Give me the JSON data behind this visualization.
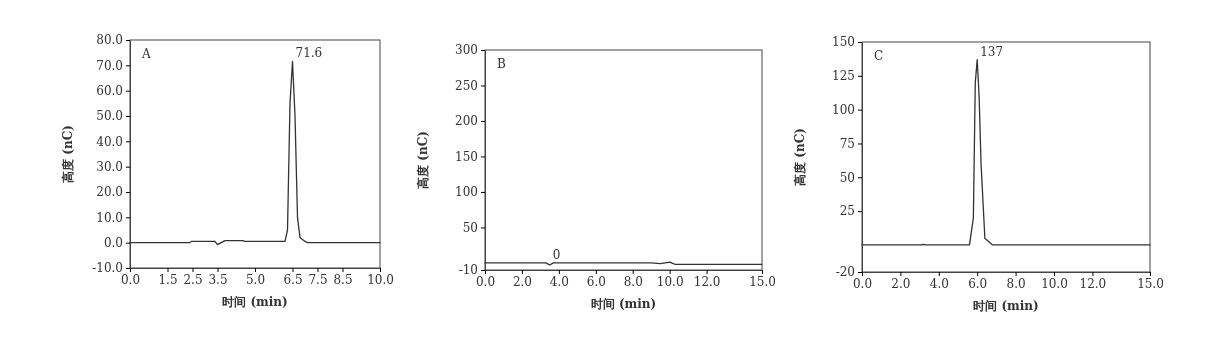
{
  "chart_data": [
    {
      "type": "line",
      "xlabel": "时间 (min)",
      "ylabel": "高度 (nC)",
      "annotations": [
        "A",
        {
          "text": "71.6",
          "x": 6.5,
          "y": 71.6
        }
      ],
      "xlim": [
        0,
        10
      ],
      "xticks": [
        {
          "value": 0,
          "label": "0.0"
        },
        {
          "value": 1.5,
          "label": "1.5"
        },
        {
          "value": 2.5,
          "label": "2.5"
        },
        {
          "value": 3.5,
          "label": "3.5"
        },
        {
          "value": 5,
          "label": "5.0"
        },
        {
          "value": 6.5,
          "label": "6.5"
        },
        {
          "value": 7.5,
          "label": "7.5"
        },
        {
          "value": 8.5,
          "label": "8.5"
        },
        {
          "value": 10,
          "label": "10.0"
        }
      ],
      "ylim": [
        -10,
        80
      ],
      "yticks": [
        {
          "value": -10,
          "label": "-10.0"
        },
        {
          "value": 0,
          "label": "0.0"
        },
        {
          "value": 10,
          "label": "10.0"
        },
        {
          "value": 20,
          "label": "20.0"
        },
        {
          "value": 30,
          "label": "30.0"
        },
        {
          "value": 40,
          "label": "40.0"
        },
        {
          "value": 50,
          "label": "50.0"
        },
        {
          "value": 60,
          "label": "60.0"
        },
        {
          "value": 70,
          "label": "70.0"
        },
        {
          "value": 80,
          "label": "80.0"
        }
      ],
      "grid": false,
      "marker": "none",
      "line_style": "solid",
      "series": [
        {
          "color": "#333333",
          "x": [
            0,
            2.4,
            2.45,
            3.4,
            3.5,
            3.65,
            3.8,
            4.5,
            4.6,
            6.2,
            6.3,
            6.4,
            6.5,
            6.6,
            6.7,
            6.8,
            7.0,
            7.1,
            10
          ],
          "values": [
            0,
            0,
            0.5,
            0.5,
            -0.8,
            0,
            0.8,
            0.8,
            0.5,
            0.5,
            5,
            55,
            71.6,
            50,
            10,
            2,
            0.5,
            0,
            0
          ]
        }
      ]
    },
    {
      "type": "line",
      "xlabel": "时间 (min)",
      "ylabel": "高度 (nC)",
      "annotations": [
        "B",
        {
          "text": "0",
          "x": 3.5,
          "y": 0
        }
      ],
      "xlim": [
        0,
        15
      ],
      "xticks": [
        {
          "value": 0,
          "label": "0.0"
        },
        {
          "value": 2,
          "label": "2.0"
        },
        {
          "value": 4,
          "label": "4.0"
        },
        {
          "value": 6,
          "label": "6.0"
        },
        {
          "value": 8,
          "label": "8.0"
        },
        {
          "value": 10,
          "label": "10.0"
        },
        {
          "value": 12,
          "label": "12.0"
        },
        {
          "value": 15,
          "label": "15.0"
        }
      ],
      "ylim": [
        -10,
        300
      ],
      "yticks": [
        -10,
        50,
        100,
        150,
        200,
        250,
        300
      ],
      "grid": false,
      "marker": "none",
      "line_style": "solid",
      "series": [
        {
          "color": "#333333",
          "x": [
            0,
            3.3,
            3.5,
            3.7,
            9,
            9.5,
            10,
            10.3,
            15
          ],
          "values": [
            0,
            0,
            -3,
            0,
            0,
            -1,
            1,
            -2,
            -2
          ]
        }
      ]
    },
    {
      "type": "line",
      "xlabel": "时间 (min)",
      "ylabel": "高度 (nC)",
      "annotations": [
        "C",
        {
          "text": "137",
          "x": 6.0,
          "y": 137
        }
      ],
      "xlim": [
        0,
        15
      ],
      "xticks": [
        {
          "value": 0,
          "label": "0.0"
        },
        {
          "value": 2,
          "label": "2.0"
        },
        {
          "value": 4,
          "label": "4.0"
        },
        {
          "value": 6,
          "label": "6.0"
        },
        {
          "value": 8,
          "label": "8.0"
        },
        {
          "value": 10,
          "label": "10.0"
        },
        {
          "value": 12,
          "label": "12.0"
        },
        {
          "value": 15,
          "label": "15.0"
        }
      ],
      "ylim": [
        -20,
        150
      ],
      "yticks": [
        -20,
        25,
        50,
        75,
        100,
        125,
        150
      ],
      "grid": false,
      "marker": "none",
      "line_style": "solid",
      "series": [
        {
          "color": "#333333",
          "x": [
            0,
            3.1,
            3.2,
            3.3,
            5.6,
            5.8,
            5.9,
            6.0,
            6.1,
            6.2,
            6.4,
            6.8,
            15
          ],
          "values": [
            0,
            0,
            0.5,
            0,
            0,
            20,
            120,
            137,
            110,
            60,
            5,
            0,
            0
          ]
        }
      ]
    }
  ]
}
